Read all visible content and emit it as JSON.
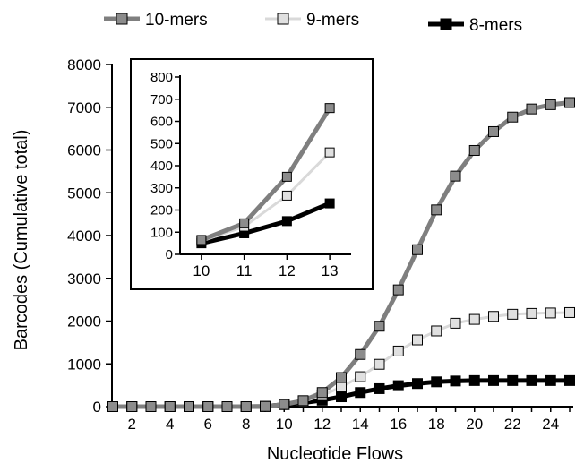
{
  "chart_data": {
    "type": "line",
    "xlabel": "Nucleotide Flows",
    "ylabel": "Barcodes (Cumulative total)",
    "xlim": [
      1,
      25
    ],
    "ylim": [
      0,
      8000
    ],
    "x_ticks": [
      "2",
      "4",
      "6",
      "8",
      "10",
      "12",
      "14",
      "16",
      "18",
      "20",
      "22",
      "24"
    ],
    "y_ticks": [
      "0",
      "1000",
      "2000",
      "3000",
      "4000",
      "5000",
      "6000",
      "7000",
      "8000"
    ],
    "legend_position": "top",
    "x": [
      1,
      2,
      3,
      4,
      5,
      6,
      7,
      8,
      9,
      10,
      11,
      12,
      13,
      14,
      15,
      16,
      17,
      18,
      19,
      20,
      21,
      22,
      23,
      24,
      25
    ],
    "series": [
      {
        "name": "10-mers",
        "line_color": "#7f7f7f",
        "marker_fill": "#8c8c8c",
        "values": [
          0,
          0,
          0,
          0,
          0,
          0,
          0,
          0,
          5,
          50,
          140,
          330,
          680,
          1220,
          1880,
          2730,
          3670,
          4600,
          5390,
          5990,
          6430,
          6770,
          6960,
          7060,
          7110
        ]
      },
      {
        "name": "9-mers",
        "line_color": "#d9d9d9",
        "marker_fill": "#e0e0e0",
        "values": [
          0,
          0,
          0,
          0,
          0,
          0,
          0,
          0,
          5,
          50,
          120,
          260,
          460,
          700,
          990,
          1300,
          1560,
          1770,
          1950,
          2040,
          2110,
          2160,
          2180,
          2190,
          2200
        ]
      },
      {
        "name": "8-mers",
        "line_color": "#000000",
        "marker_fill": "#000000",
        "values": [
          0,
          0,
          0,
          0,
          0,
          0,
          0,
          0,
          5,
          50,
          90,
          150,
          230,
          330,
          420,
          490,
          540,
          580,
          600,
          610,
          610,
          610,
          610,
          610,
          610
        ]
      }
    ],
    "inset": {
      "type": "line",
      "x": [
        10,
        11,
        12,
        13
      ],
      "x_ticks": [
        "10",
        "11",
        "12",
        "13"
      ],
      "y_ticks": [
        "0",
        "100",
        "200",
        "300",
        "400",
        "500",
        "600",
        "700",
        "800"
      ],
      "xlim": [
        9.5,
        13.5
      ],
      "ylim": [
        0,
        800
      ],
      "series": [
        {
          "name": "10-mers",
          "values": [
            65,
            140,
            350,
            660
          ]
        },
        {
          "name": "9-mers",
          "values": [
            60,
            125,
            265,
            460
          ]
        },
        {
          "name": "8-mers",
          "values": [
            50,
            95,
            150,
            230
          ]
        }
      ]
    }
  }
}
